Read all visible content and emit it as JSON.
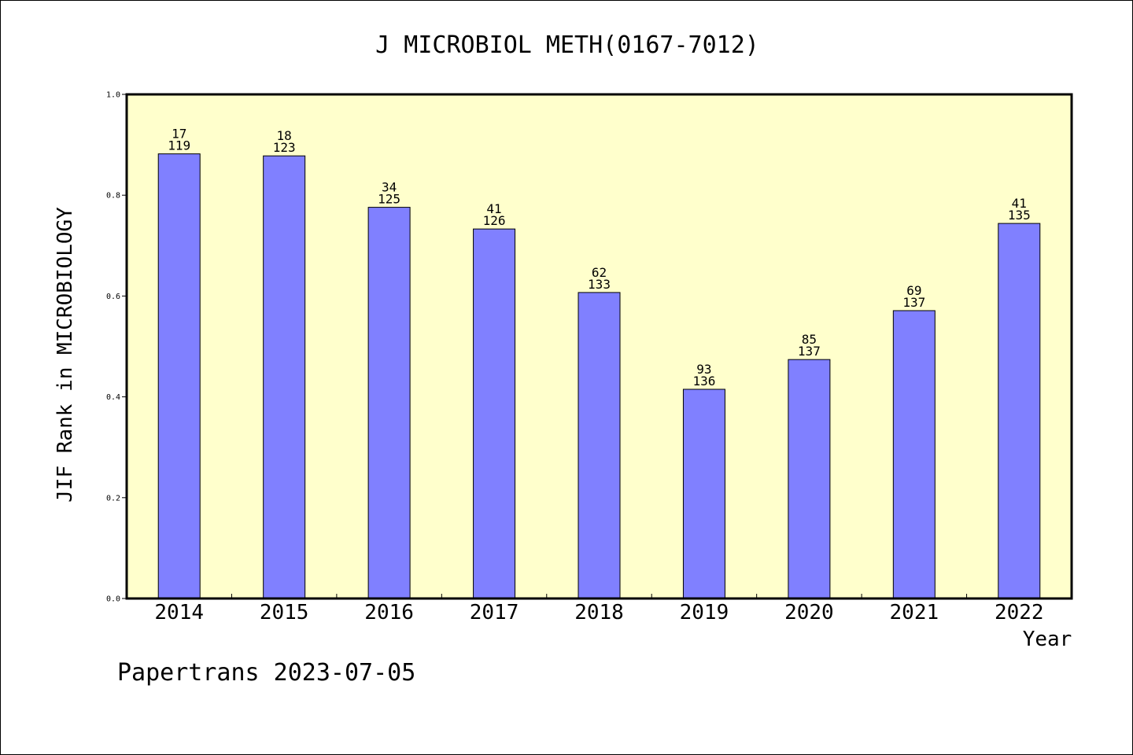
{
  "chart_data": {
    "type": "bar",
    "title": "J MICROBIOL METH(0167-7012)",
    "xlabel": "Year",
    "ylabel": "JIF Rank in MICROBIOLOGY",
    "ylim": [
      0,
      1.0
    ],
    "yticks": [
      "0.0",
      "0.2",
      "0.4",
      "0.6",
      "0.8",
      "1.0"
    ],
    "categories": [
      "2014",
      "2015",
      "2016",
      "2017",
      "2018",
      "2019",
      "2020",
      "2021",
      "2022"
    ],
    "values": [
      0.882,
      0.878,
      0.776,
      0.733,
      0.607,
      0.415,
      0.474,
      0.571,
      0.744
    ],
    "rank": [
      "17",
      "18",
      "34",
      "41",
      "62",
      "93",
      "85",
      "69",
      "41"
    ],
    "total": [
      "119",
      "123",
      "125",
      "126",
      "133",
      "136",
      "137",
      "137",
      "135"
    ],
    "grid": false,
    "colors": {
      "plot_background": "#ffffcc",
      "bar_fill": "#8080ff",
      "bar_stroke": "#000000"
    }
  },
  "footer": {
    "text": "Papertrans 2023-07-05"
  }
}
